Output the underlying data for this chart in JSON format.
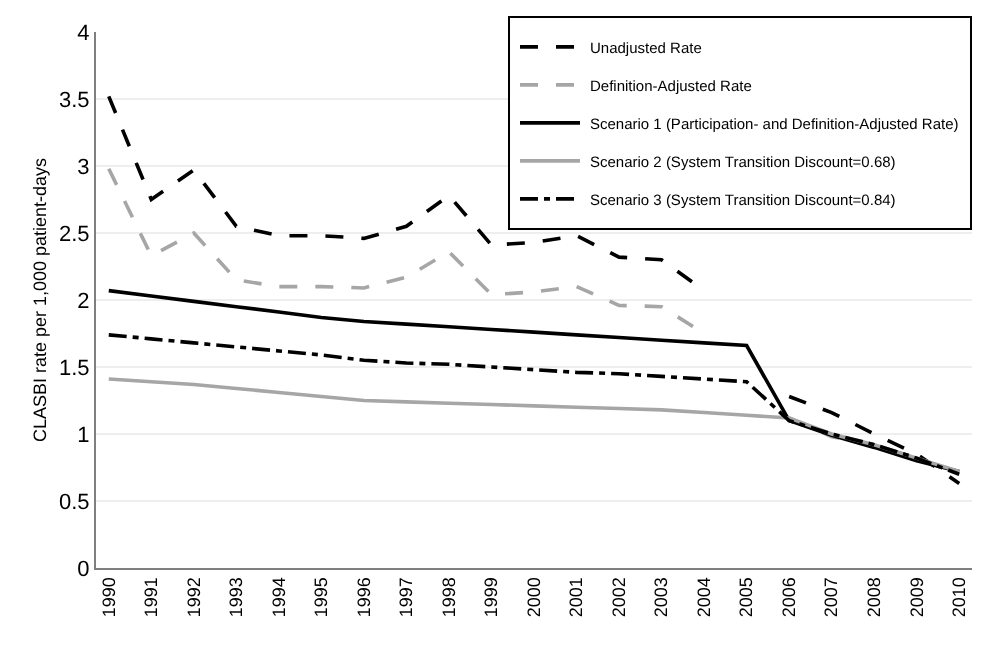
{
  "chart_data": {
    "type": "line",
    "ylabel": "CLASBI rate per 1,000 patient-days",
    "categories": [
      "1990",
      "1991",
      "1992",
      "1993",
      "1994",
      "1995",
      "1996",
      "1997",
      "1998",
      "1999",
      "2000",
      "2001",
      "2002",
      "2003",
      "2004",
      "2005",
      "2006",
      "2007",
      "2008",
      "2009",
      "2010"
    ],
    "ylim": [
      0,
      4
    ],
    "yticks": [
      0,
      0.5,
      1,
      1.5,
      2,
      2.5,
      3,
      3.5,
      4
    ],
    "grid": "y",
    "legend": "top right",
    "marker": "none",
    "series": [
      {
        "name": "Unadjusted Rate",
        "color": "#000000",
        "line_style": "dashed",
        "values": [
          3.52,
          2.75,
          2.97,
          2.55,
          2.48,
          2.48,
          2.46,
          2.55,
          2.78,
          2.41,
          2.43,
          2.48,
          2.32,
          2.3,
          2.07,
          null,
          1.28,
          1.16,
          1.0,
          0.85,
          0.63
        ]
      },
      {
        "name": "Definition-Adjusted Rate",
        "color": "#a6a6a6",
        "line_style": "dashed",
        "values": [
          2.98,
          2.33,
          2.5,
          2.15,
          2.1,
          2.1,
          2.09,
          2.17,
          2.36,
          2.04,
          2.06,
          2.1,
          1.96,
          1.95,
          1.75,
          null,
          1.12,
          0.98,
          0.92,
          0.82,
          0.7
        ]
      },
      {
        "name": "Scenario 1 (Participation- and Definition-Adjusted Rate)",
        "color": "#000000",
        "line_style": "solid",
        "values": [
          2.07,
          2.03,
          1.99,
          1.95,
          1.91,
          1.87,
          1.84,
          1.82,
          1.8,
          1.78,
          1.76,
          1.74,
          1.72,
          1.7,
          1.68,
          1.66,
          1.1,
          0.99,
          0.9,
          0.8,
          0.72
        ]
      },
      {
        "name": "Scenario 2 (System Transition Discount=0.68)",
        "color": "#a6a6a6",
        "line_style": "solid",
        "values": [
          1.41,
          1.39,
          1.37,
          1.34,
          1.31,
          1.28,
          1.25,
          1.24,
          1.23,
          1.22,
          1.21,
          1.2,
          1.19,
          1.18,
          1.16,
          1.14,
          1.12,
          1.0,
          0.92,
          0.82,
          0.72
        ]
      },
      {
        "name": "Scenario 3 (System Transition Discount=0.84)",
        "color": "#000000",
        "line_style": "dashdot",
        "values": [
          1.74,
          1.71,
          1.68,
          1.65,
          1.62,
          1.59,
          1.55,
          1.53,
          1.52,
          1.5,
          1.48,
          1.46,
          1.45,
          1.43,
          1.41,
          1.39,
          1.1,
          1.0,
          0.92,
          0.82,
          0.7
        ]
      }
    ]
  }
}
